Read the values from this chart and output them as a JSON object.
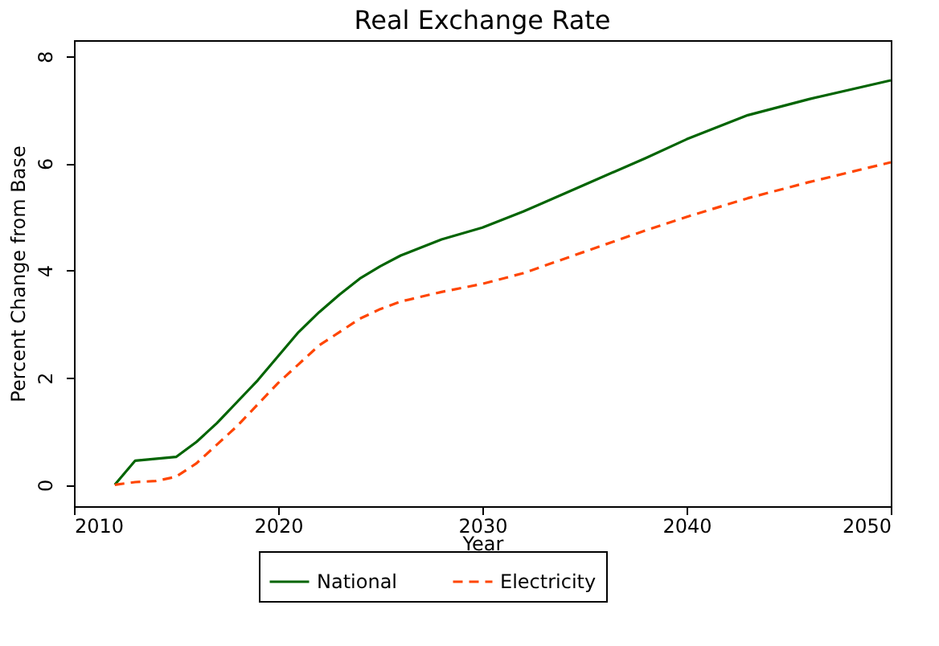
{
  "chart_data": {
    "type": "line",
    "title": "Real Exchange Rate",
    "xlabel": "Year",
    "ylabel": "Percent Change from Base",
    "xlim": [
      2010,
      2050
    ],
    "xticks": [
      2010,
      2020,
      2030,
      2040,
      2050
    ],
    "ylim": [
      -0.4,
      8.3
    ],
    "yticks": [
      0,
      2,
      4,
      6,
      8
    ],
    "grid": false,
    "legend": "bottom",
    "marker": "none",
    "series": [
      {
        "name": "National",
        "color": "#006400",
        "line_style": "solid",
        "x": [
          2012,
          2013,
          2015,
          2016,
          2017,
          2018,
          2019,
          2020,
          2021,
          2022,
          2023,
          2024,
          2025,
          2026,
          2028,
          2030,
          2032,
          2035,
          2038,
          2040,
          2043,
          2046,
          2050
        ],
        "values": [
          0,
          0.45,
          0.52,
          0.8,
          1.15,
          1.55,
          1.95,
          2.4,
          2.85,
          3.22,
          3.55,
          3.85,
          4.08,
          4.28,
          4.58,
          4.8,
          5.1,
          5.6,
          6.1,
          6.45,
          6.9,
          7.2,
          7.55
        ]
      },
      {
        "name": "Electricity",
        "color": "#ff4500",
        "line_style": "dashed",
        "x": [
          2012,
          2013,
          2014,
          2015,
          2016,
          2017,
          2018,
          2019,
          2020,
          2021,
          2022,
          2023,
          2024,
          2025,
          2026,
          2028,
          2030,
          2032,
          2035,
          2038,
          2040,
          2043,
          2046,
          2050
        ],
        "values": [
          0,
          0.05,
          0.07,
          0.15,
          0.4,
          0.75,
          1.1,
          1.5,
          1.9,
          2.25,
          2.6,
          2.85,
          3.1,
          3.28,
          3.42,
          3.6,
          3.75,
          3.95,
          4.35,
          4.75,
          5.0,
          5.35,
          5.65,
          6.02
        ]
      }
    ]
  }
}
